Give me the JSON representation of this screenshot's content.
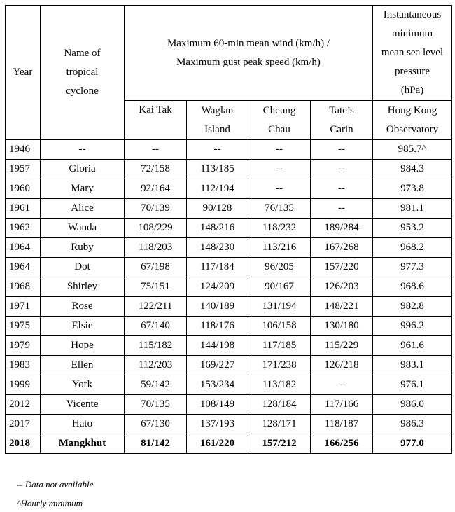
{
  "headers": {
    "year": "Year",
    "name_line1": "Name of",
    "name_line2": "tropical",
    "name_line3": "cyclone",
    "wind_line1": "Maximum 60-min mean wind (km/h) /",
    "wind_line2": "Maximum gust peak speed (km/h)",
    "pressure_line1": "Instantaneous",
    "pressure_line2": "minimum",
    "pressure_line3": "mean sea level",
    "pressure_line4": "pressure",
    "pressure_line5": "(hPa)",
    "station_kaitak": "Kai Tak",
    "station_waglan_1": "Waglan",
    "station_waglan_2": "Island",
    "station_cheung_1": "Cheung",
    "station_cheung_2": "Chau",
    "station_tates_1": "Tate’s",
    "station_tates_2": "Carin",
    "station_hko_1": "Hong Kong",
    "station_hko_2": "Observatory"
  },
  "rows": [
    {
      "year": "1946",
      "name": "--",
      "kaitak": "--",
      "waglan": "--",
      "cheung": "--",
      "tates": "--",
      "pressure": "985.7^"
    },
    {
      "year": "1957",
      "name": "Gloria",
      "kaitak": "72/158",
      "waglan": "113/185",
      "cheung": "--",
      "tates": "--",
      "pressure": "984.3"
    },
    {
      "year": "1960",
      "name": "Mary",
      "kaitak": "92/164",
      "waglan": "112/194",
      "cheung": "--",
      "tates": "--",
      "pressure": "973.8"
    },
    {
      "year": "1961",
      "name": "Alice",
      "kaitak": "70/139",
      "waglan": "90/128",
      "cheung": "76/135",
      "tates": "--",
      "pressure": "981.1"
    },
    {
      "year": "1962",
      "name": "Wanda",
      "kaitak": "108/229",
      "waglan": "148/216",
      "cheung": "118/232",
      "tates": "189/284",
      "pressure": "953.2"
    },
    {
      "year": "1964",
      "name": "Ruby",
      "kaitak": "118/203",
      "waglan": "148/230",
      "cheung": "113/216",
      "tates": "167/268",
      "pressure": "968.2"
    },
    {
      "year": "1964",
      "name": "Dot",
      "kaitak": "67/198",
      "waglan": "117/184",
      "cheung": "96/205",
      "tates": "157/220",
      "pressure": "977.3"
    },
    {
      "year": "1968",
      "name": "Shirley",
      "kaitak": "75/151",
      "waglan": "124/209",
      "cheung": "90/167",
      "tates": "126/203",
      "pressure": "968.6"
    },
    {
      "year": "1971",
      "name": "Rose",
      "kaitak": "122/211",
      "waglan": "140/189",
      "cheung": "131/194",
      "tates": "148/221",
      "pressure": "982.8"
    },
    {
      "year": "1975",
      "name": "Elsie",
      "kaitak": "67/140",
      "waglan": "118/176",
      "cheung": "106/158",
      "tates": "130/180",
      "pressure": "996.2"
    },
    {
      "year": "1979",
      "name": "Hope",
      "kaitak": "115/182",
      "waglan": "144/198",
      "cheung": "117/185",
      "tates": "115/229",
      "pressure": "961.6"
    },
    {
      "year": "1983",
      "name": "Ellen",
      "kaitak": "112/203",
      "waglan": "169/227",
      "cheung": "171/238",
      "tates": "126/218",
      "pressure": "983.1"
    },
    {
      "year": "1999",
      "name": "York",
      "kaitak": "59/142",
      "waglan": "153/234",
      "cheung": "113/182",
      "tates": "--",
      "pressure": "976.1"
    },
    {
      "year": "2012",
      "name": "Vicente",
      "kaitak": "70/135",
      "waglan": "108/149",
      "cheung": "128/184",
      "tates": "117/166",
      "pressure": "986.0"
    },
    {
      "year": "2017",
      "name": "Hato",
      "kaitak": "67/130",
      "waglan": "137/193",
      "cheung": "128/171",
      "tates": "118/187",
      "pressure": "986.3"
    },
    {
      "year": "2018",
      "name": "Mangkhut",
      "kaitak": "81/142",
      "waglan": "161/220",
      "cheung": "157/212",
      "tates": "166/256",
      "pressure": "977.0"
    }
  ],
  "notes": {
    "na": "-- Data not available",
    "hourly": "^Hourly minimum"
  }
}
